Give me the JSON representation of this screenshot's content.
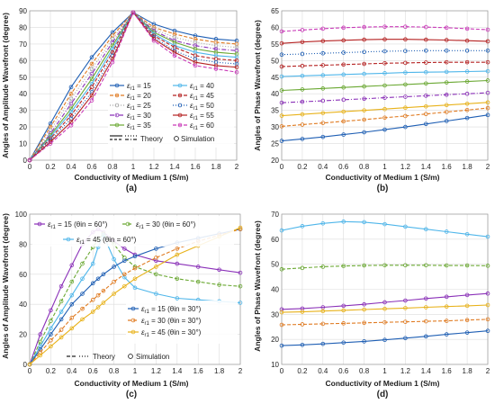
{
  "colors": [
    "#1f5fb4",
    "#e07b22",
    "#a8a8a8",
    "#e8b21a",
    "#8a30b8",
    "#6aa832",
    "#4fb6ea",
    "#b52222",
    "#c93ab8"
  ],
  "chart_data": [
    {
      "panel": "(a)",
      "type": "line",
      "xlabel": "Conductivity of Medium 1 (S/m)",
      "ylabel": "Angles of Amplitude Wavefront (degree)",
      "xlim": [
        0,
        2
      ],
      "ylim": [
        0,
        90
      ],
      "xticks": [
        "0",
        "0.2",
        "0.4",
        "0.6",
        "0.8",
        "1",
        "1.2",
        "1.4",
        "1.6",
        "1.8",
        "2"
      ],
      "yticks": [
        "0",
        "10",
        "20",
        "30",
        "40",
        "50",
        "60",
        "70",
        "80",
        "90"
      ],
      "grid": true,
      "legend_items": [
        {
          "text": "εr1 = 15",
          "color": 0,
          "dash": ""
        },
        {
          "text": "εr1 = 20",
          "color": 1,
          "dash": "4 2"
        },
        {
          "text": "εr1 = 25",
          "color": 2,
          "dash": "1 2"
        },
        {
          "text": "εr1 = 30",
          "color": 4,
          "dash": "5 2 1 2"
        },
        {
          "text": "εr1 = 35",
          "color": 5,
          "dash": ""
        },
        {
          "text": "εr1 = 40",
          "color": 6,
          "dash": ""
        },
        {
          "text": "εr1 = 45",
          "color": 7,
          "dash": "4 2"
        },
        {
          "text": "εr1 = 50",
          "color": 0,
          "dash": "1 2"
        },
        {
          "text": "εr1 = 55",
          "color": 7,
          "dash": ""
        },
        {
          "text": "εr1 = 60",
          "color": 8,
          "dash": "4 2"
        }
      ],
      "legend_theory": "Theory",
      "legend_simulation": "Simulation",
      "x": [
        0,
        0.2,
        0.4,
        0.6,
        0.8,
        1.0,
        1.2,
        1.4,
        1.6,
        1.8,
        2.0
      ],
      "series": [
        {
          "color": 0,
          "dash": "",
          "y": [
            0,
            22,
            44,
            62,
            77,
            89,
            82,
            78,
            75,
            73,
            72
          ]
        },
        {
          "color": 1,
          "dash": "4 2",
          "y": [
            0,
            20,
            40,
            58,
            75,
            89,
            80,
            76,
            73,
            71,
            70
          ]
        },
        {
          "color": 2,
          "dash": "1 2",
          "y": [
            0,
            18,
            37,
            55,
            73,
            89,
            79,
            74,
            71,
            69,
            68
          ]
        },
        {
          "color": 4,
          "dash": "5 2 1 2",
          "y": [
            0,
            16,
            34,
            52,
            71,
            89,
            78,
            72,
            69,
            67,
            66
          ]
        },
        {
          "color": 5,
          "dash": "",
          "y": [
            0,
            15,
            31,
            49,
            69,
            89,
            77,
            71,
            67,
            65,
            64
          ]
        },
        {
          "color": 6,
          "dash": "",
          "y": [
            0,
            14,
            29,
            46,
            67,
            89,
            76,
            69,
            65,
            63,
            62
          ]
        },
        {
          "color": 7,
          "dash": "4 2",
          "y": [
            0,
            13,
            27,
            44,
            65,
            89,
            75,
            68,
            63,
            61,
            60
          ]
        },
        {
          "color": 0,
          "dash": "1 2",
          "y": [
            0,
            12,
            25,
            41,
            63,
            89,
            74,
            66,
            61,
            59,
            58
          ]
        },
        {
          "color": 7,
          "dash": "",
          "y": [
            0,
            11,
            23,
            39,
            61,
            89,
            73,
            65,
            59,
            57,
            56
          ]
        },
        {
          "color": 8,
          "dash": "4 2",
          "y": [
            0,
            10,
            21,
            36,
            59,
            89,
            72,
            63,
            57,
            55,
            53
          ]
        }
      ]
    },
    {
      "panel": "(b)",
      "type": "line",
      "xlabel": "Conductivity of Medium 1 (S/m)",
      "ylabel": "Angles of Phase Wavefront (degree)",
      "xlim": [
        0,
        2
      ],
      "ylim": [
        20,
        65
      ],
      "xticks": [
        "0",
        "0.2",
        "0.4",
        "0.6",
        "0.8",
        "1",
        "1.2",
        "1.4",
        "1.6",
        "1.8",
        "2"
      ],
      "yticks": [
        "20",
        "25",
        "30",
        "35",
        "40",
        "45",
        "50",
        "55",
        "60",
        "65"
      ],
      "grid": true,
      "x": [
        0,
        0.2,
        0.4,
        0.6,
        0.8,
        1.0,
        1.2,
        1.4,
        1.6,
        1.8,
        2.0
      ],
      "series": [
        {
          "color": 0,
          "dash": "",
          "y": [
            25.8,
            26.4,
            27.0,
            27.7,
            28.4,
            29.2,
            30.0,
            30.9,
            31.8,
            32.7,
            33.6
          ]
        },
        {
          "color": 1,
          "dash": "4 2",
          "y": [
            30.2,
            30.7,
            31.2,
            31.7,
            32.2,
            32.8,
            33.3,
            33.9,
            34.5,
            35.1,
            35.7
          ]
        },
        {
          "color": 3,
          "dash": "",
          "y": [
            33.4,
            33.8,
            34.2,
            34.6,
            35.0,
            35.4,
            35.8,
            36.2,
            36.6,
            37.0,
            37.4
          ]
        },
        {
          "color": 4,
          "dash": "5 2 1 2",
          "y": [
            37.3,
            37.6,
            37.9,
            38.2,
            38.5,
            38.8,
            39.1,
            39.4,
            39.7,
            40.0,
            40.3
          ]
        },
        {
          "color": 5,
          "dash": "",
          "y": [
            41.0,
            41.3,
            41.6,
            41.9,
            42.2,
            42.5,
            42.8,
            43.1,
            43.4,
            43.7,
            44.0
          ]
        },
        {
          "color": 6,
          "dash": "",
          "y": [
            45.2,
            45.4,
            45.6,
            45.8,
            46.0,
            46.2,
            46.4,
            46.5,
            46.6,
            46.7,
            46.8
          ]
        },
        {
          "color": 7,
          "dash": "4 2",
          "y": [
            48.2,
            48.4,
            48.6,
            48.8,
            49.0,
            49.2,
            49.3,
            49.4,
            49.5,
            49.5,
            49.5
          ]
        },
        {
          "color": 0,
          "dash": "1 2",
          "y": [
            51.8,
            52.0,
            52.2,
            52.4,
            52.6,
            52.8,
            52.9,
            53.0,
            53.0,
            53.0,
            53.0
          ]
        },
        {
          "color": 7,
          "dash": "",
          "y": [
            55.2,
            55.6,
            55.9,
            56.1,
            56.3,
            56.4,
            56.4,
            56.3,
            56.2,
            56.0,
            55.8
          ]
        },
        {
          "color": 8,
          "dash": "4 2",
          "y": [
            58.8,
            59.2,
            59.6,
            59.9,
            60.1,
            60.2,
            60.2,
            60.1,
            59.9,
            59.6,
            59.3
          ]
        }
      ]
    },
    {
      "panel": "(c)",
      "type": "line",
      "xlabel": "Conductivity of Medium 1 (S/m)",
      "ylabel": "Angles of Amplitude Wavefront (degree)",
      "xlim": [
        0,
        2
      ],
      "ylim": [
        0,
        100
      ],
      "xticks": [
        "0",
        "0.2",
        "0.4",
        "0.6",
        "0.8",
        "1",
        "1.2",
        "1.4",
        "1.6",
        "1.8",
        "2"
      ],
      "yticks": [
        "0",
        "20",
        "40",
        "60",
        "80",
        "100"
      ],
      "grid": true,
      "legend_top": [
        {
          "text": "εr1 = 15 (θin = 60°)",
          "color": 4,
          "dash": ""
        },
        {
          "text": "εr1 = 30 (θin = 60°)",
          "color": 5,
          "dash": "4 2"
        },
        {
          "text": "εr1 = 45 (θin = 60°)",
          "color": 6,
          "dash": ""
        }
      ],
      "legend_bottom": [
        {
          "text": "εr1 = 15 (θin = 30°)",
          "color": 0,
          "dash": ""
        },
        {
          "text": "εr1 = 30 (θin = 30°)",
          "color": 1,
          "dash": "4 2"
        },
        {
          "text": "εr1 = 45 (θin = 30°)",
          "color": 3,
          "dash": ""
        }
      ],
      "legend_theory": "Theory",
      "legend_simulation": "Simulation",
      "x": [
        0,
        0.1,
        0.2,
        0.3,
        0.4,
        0.5,
        0.6,
        0.65,
        0.7,
        0.8,
        0.9,
        1.0,
        1.2,
        1.4,
        1.6,
        1.8,
        2.0
      ],
      "series": [
        {
          "color": 4,
          "dash": "",
          "y": [
            0,
            20,
            36,
            52,
            66,
            80,
            88,
            90,
            88,
            82,
            77,
            73,
            69,
            67,
            65,
            63,
            61
          ]
        },
        {
          "color": 5,
          "dash": "4 2",
          "y": [
            0,
            15,
            29,
            42,
            55,
            67,
            78,
            83,
            87,
            80,
            71,
            65,
            60,
            57,
            55,
            53,
            52
          ]
        },
        {
          "color": 6,
          "dash": "",
          "y": [
            0,
            12,
            24,
            35,
            46,
            57,
            67,
            78,
            86,
            70,
            58,
            51,
            47,
            44,
            43,
            42,
            41
          ]
        },
        {
          "color": 0,
          "dash": "",
          "y": [
            0,
            10,
            20,
            30,
            40,
            47,
            54,
            57,
            60,
            65,
            69,
            72,
            77,
            81,
            84,
            87,
            90
          ]
        },
        {
          "color": 1,
          "dash": "4 2",
          "y": [
            0,
            8,
            16,
            23,
            31,
            37,
            43,
            46,
            49,
            55,
            60,
            64,
            71,
            77,
            82,
            86,
            90
          ]
        },
        {
          "color": 3,
          "dash": "",
          "y": [
            0,
            6,
            12,
            18,
            24,
            30,
            35,
            38,
            41,
            47,
            52,
            57,
            65,
            73,
            79,
            85,
            91
          ]
        }
      ]
    },
    {
      "panel": "(d)",
      "type": "line",
      "xlabel": "Conductivity of Medium 1 (S/m)",
      "ylabel": "Angles of Phase Wavefront (degree)",
      "xlim": [
        0,
        2
      ],
      "ylim": [
        10,
        70
      ],
      "xticks": [
        "0",
        "0.2",
        "0.4",
        "0.6",
        "0.8",
        "1",
        "1.2",
        "1.4",
        "1.6",
        "1.8",
        "2"
      ],
      "yticks": [
        "10",
        "20",
        "30",
        "40",
        "50",
        "60",
        "70"
      ],
      "grid": true,
      "x": [
        0,
        0.2,
        0.4,
        0.6,
        0.8,
        1.0,
        1.2,
        1.4,
        1.6,
        1.8,
        2.0
      ],
      "series": [
        {
          "color": 6,
          "dash": "",
          "y": [
            63.5,
            65.2,
            66.3,
            67.0,
            66.8,
            66.0,
            65.0,
            64.0,
            63.0,
            62.0,
            61.0
          ]
        },
        {
          "color": 5,
          "dash": "4 2",
          "y": [
            48.0,
            48.5,
            49.0,
            49.3,
            49.5,
            49.6,
            49.6,
            49.6,
            49.5,
            49.5,
            49.4
          ]
        },
        {
          "color": 4,
          "dash": "",
          "y": [
            32.0,
            32.3,
            32.8,
            33.4,
            34.0,
            34.8,
            35.5,
            36.3,
            37.0,
            37.7,
            38.3
          ]
        },
        {
          "color": 3,
          "dash": "",
          "y": [
            30.8,
            31.0,
            31.3,
            31.6,
            31.9,
            32.2,
            32.5,
            32.8,
            33.1,
            33.4,
            33.7
          ]
        },
        {
          "color": 1,
          "dash": "4 2",
          "y": [
            25.8,
            26.0,
            26.2,
            26.4,
            26.6,
            26.8,
            27.0,
            27.2,
            27.4,
            27.7,
            28.0
          ]
        },
        {
          "color": 0,
          "dash": "",
          "y": [
            17.5,
            17.8,
            18.2,
            18.7,
            19.2,
            19.8,
            20.5,
            21.2,
            22.0,
            22.7,
            23.4
          ]
        }
      ]
    }
  ]
}
